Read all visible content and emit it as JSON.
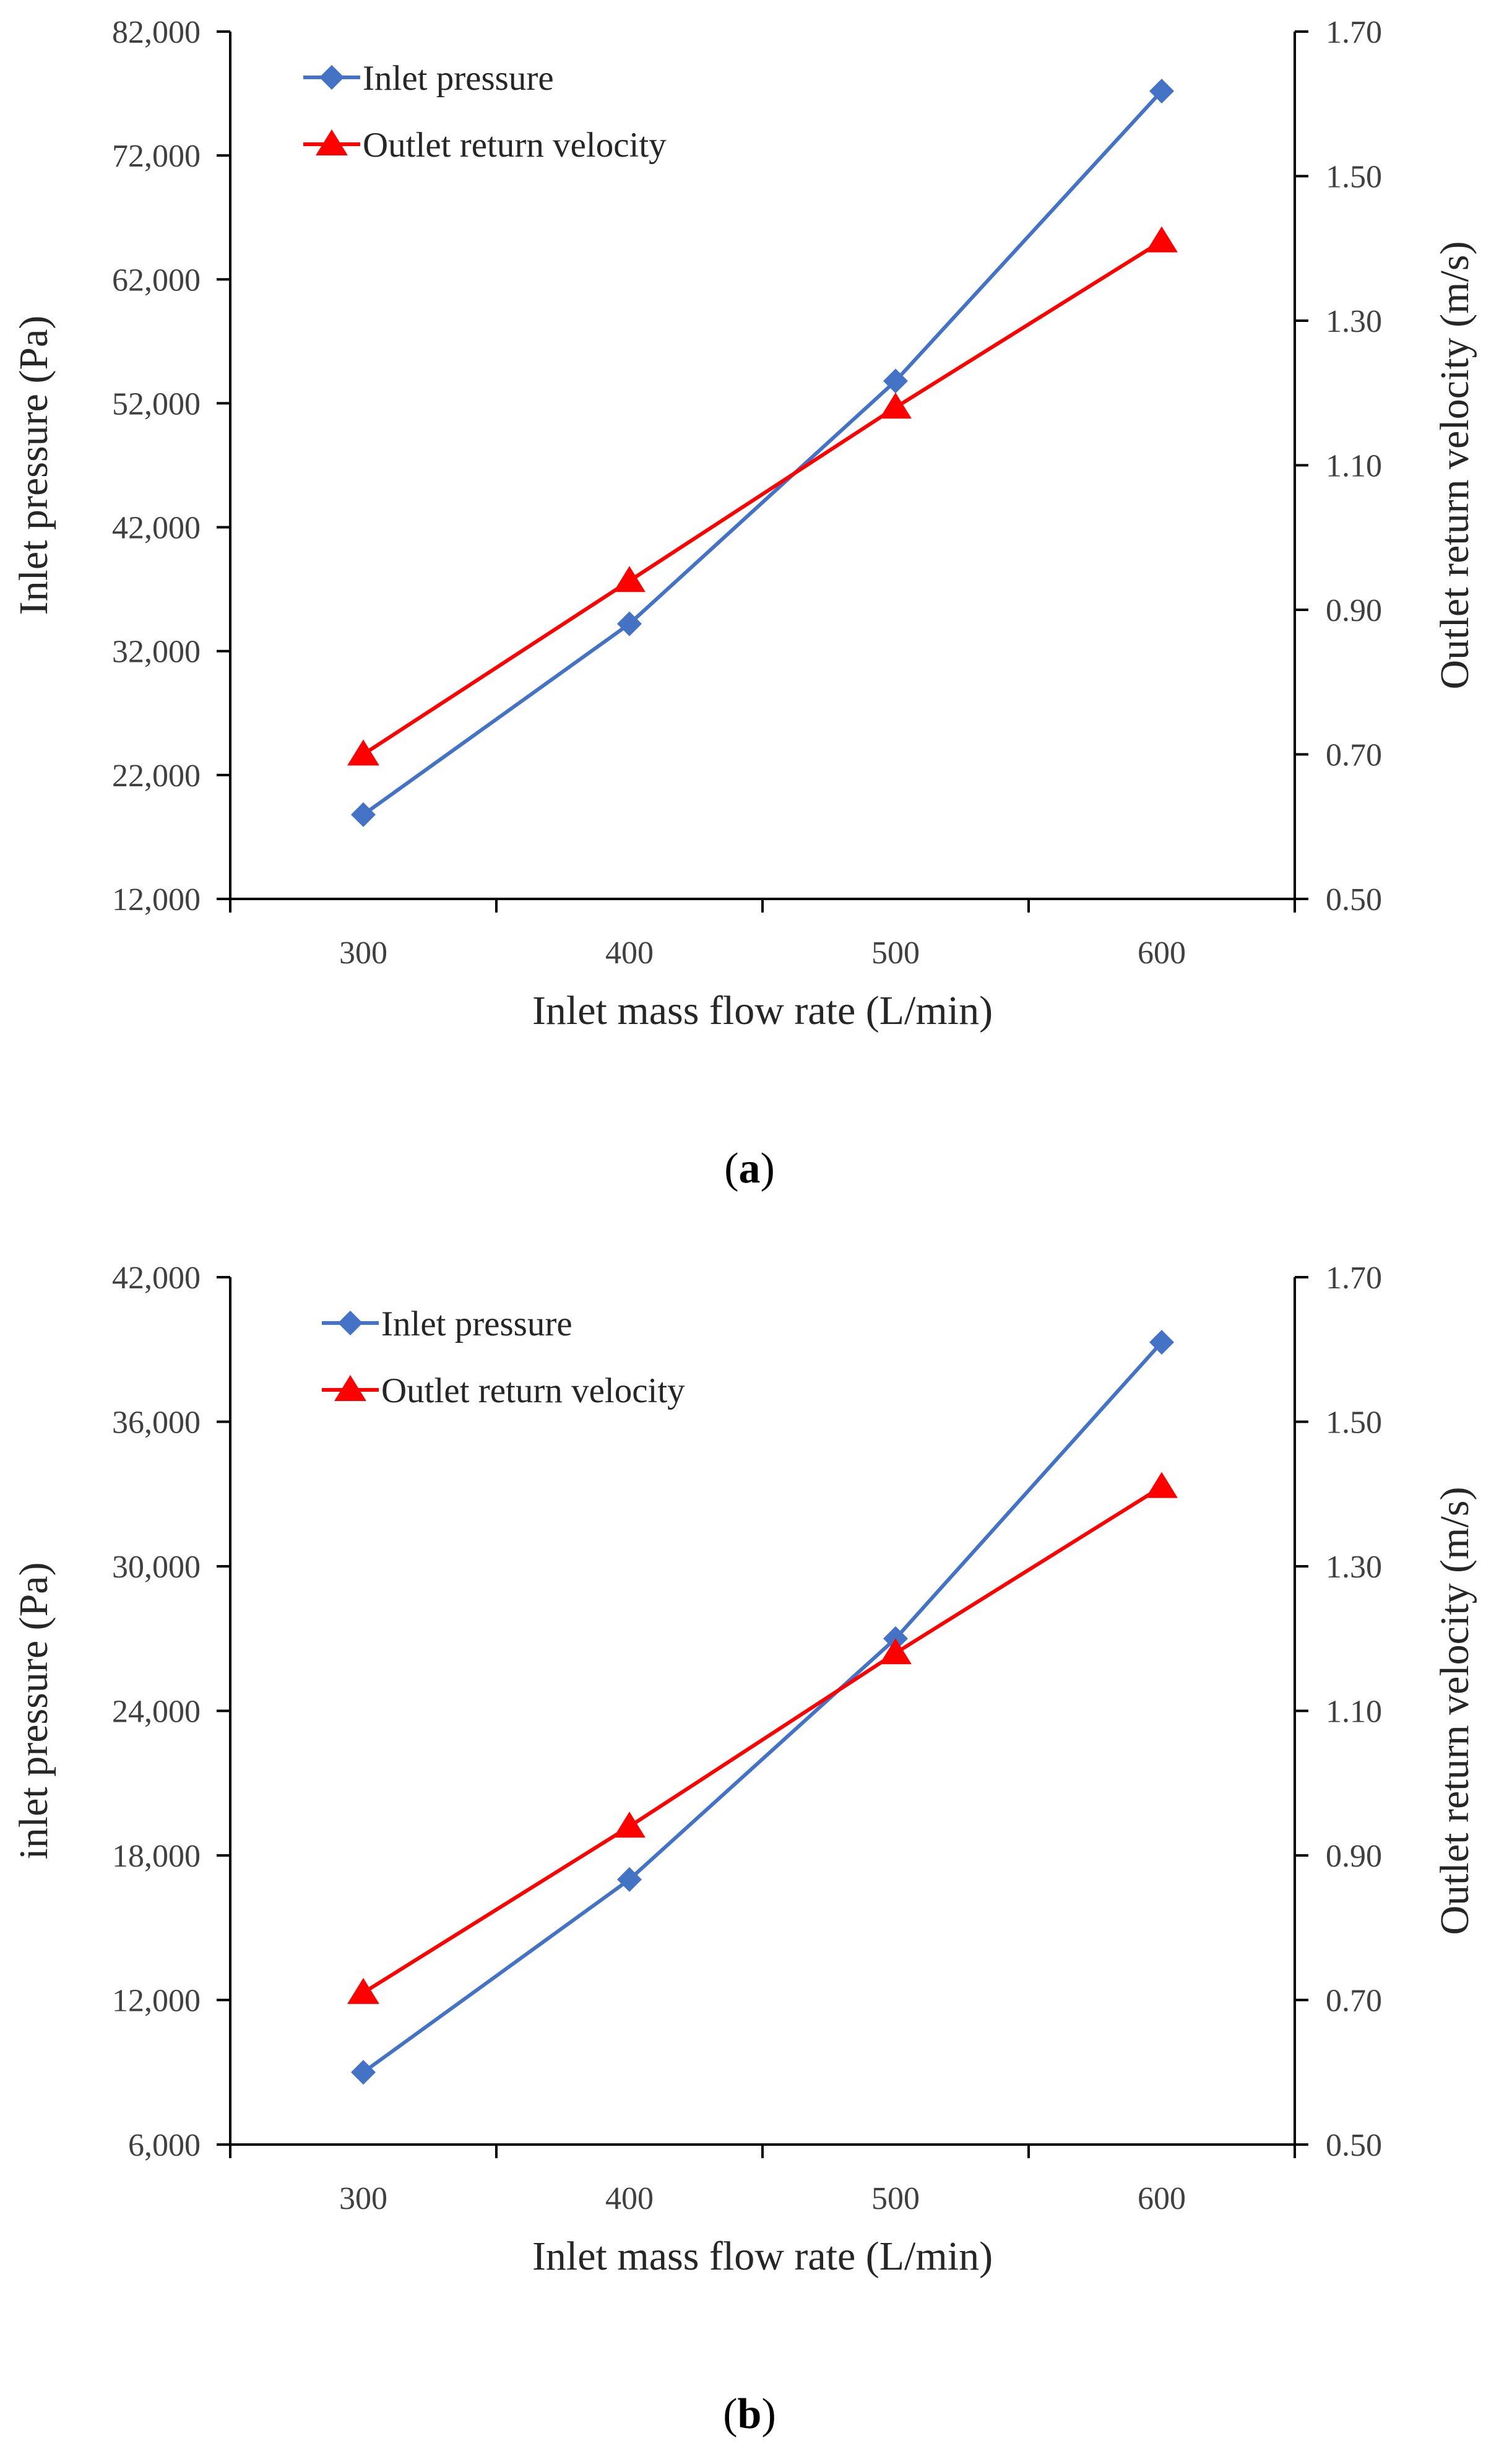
{
  "colors": {
    "inlet_pressure": "#4472C4",
    "outlet_velocity": "#FF0000",
    "axis": "#000000",
    "text": "#262626"
  },
  "chart_data": [
    {
      "type": "line",
      "caption": "(a)",
      "caption_letter": "a",
      "xlabel": "Inlet mass flow rate (L/min)",
      "ylabel": "Inlet pressure (Pa)",
      "y2label": "Outlet return velocity (m/s)",
      "categories": [
        "300",
        "400",
        "500",
        "600"
      ],
      "ylim": [
        12000,
        82000
      ],
      "y_ticks": [
        "12,000",
        "22,000",
        "32,000",
        "42,000",
        "52,000",
        "62,000",
        "72,000",
        "82,000"
      ],
      "y2lim": [
        0.5,
        1.7
      ],
      "y2_ticks": [
        "0.50",
        "0.70",
        "0.90",
        "1.10",
        "1.30",
        "1.50",
        "1.70"
      ],
      "legend_position": "top-left",
      "series": [
        {
          "name": "Inlet pressure",
          "axis": "left",
          "marker": "diamond",
          "values": [
            18800,
            34200,
            53800,
            77200
          ]
        },
        {
          "name": "Outlet return velocity",
          "axis": "right",
          "marker": "triangle",
          "values": [
            0.7,
            0.94,
            1.18,
            1.41
          ]
        }
      ]
    },
    {
      "type": "line",
      "caption": "(b)",
      "caption_letter": "b",
      "xlabel": "Inlet mass flow rate (L/min)",
      "ylabel": "inlet pressure (Pa)",
      "y2label": "Outlet return velocity (m/s)",
      "categories": [
        "300",
        "400",
        "500",
        "600"
      ],
      "ylim": [
        6000,
        42000
      ],
      "y_ticks": [
        "6,000",
        "12,000",
        "18,000",
        "24,000",
        "30,000",
        "36,000",
        "42,000"
      ],
      "y2lim": [
        0.5,
        1.7
      ],
      "y2_ticks": [
        "0.50",
        "0.70",
        "0.90",
        "1.10",
        "1.30",
        "1.50",
        "1.70"
      ],
      "legend_position": "top-left",
      "series": [
        {
          "name": "Inlet pressure",
          "axis": "left",
          "marker": "diamond",
          "values": [
            9000,
            17000,
            27000,
            39300
          ]
        },
        {
          "name": "Outlet return velocity",
          "axis": "right",
          "marker": "triangle",
          "values": [
            0.71,
            0.94,
            1.18,
            1.41
          ]
        }
      ]
    }
  ]
}
